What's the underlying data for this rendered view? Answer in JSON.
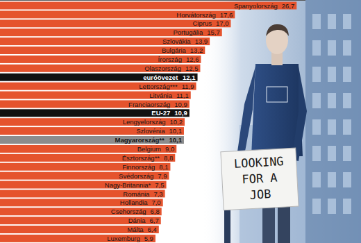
{
  "chart_data": {
    "type": "bar",
    "orientation": "horizontal",
    "categories": [
      "Spanyolország",
      "Horvátország",
      "Ciprus",
      "Portugália",
      "Szlovákia",
      "Bulgária",
      "Írország",
      "Olaszország",
      "euróövezet",
      "Lettország***",
      "Litvánia",
      "Franciaország",
      "EU-27",
      "Lengyelország",
      "Szlovénia",
      "Magyarország**",
      "Belgium",
      "Észtország**",
      "Finnország",
      "Svédország",
      "Nagy-Britannia*",
      "Románia",
      "Hollandia",
      "Csehország",
      "Dánia",
      "Málta",
      "Luxemburg"
    ],
    "values": [
      26.7,
      17.6,
      17.0,
      15.7,
      13.9,
      13.2,
      12.6,
      12.5,
      12.1,
      11.9,
      11.1,
      10.9,
      10.9,
      10.2,
      10.1,
      10.1,
      9.0,
      8.8,
      8.1,
      7.9,
      7.5,
      7.3,
      7.0,
      6.8,
      6.7,
      6.4,
      5.9
    ],
    "value_labels": [
      "26,7",
      "17,6",
      "17,0",
      "15,7",
      "13,9",
      "13,2",
      "12,6",
      "12,5",
      "12,1",
      "11,9",
      "11,1",
      "10,9",
      "10,9",
      "10,2",
      "10,1",
      "10,1",
      "9,0",
      "8,8",
      "8,1",
      "7,9",
      "7,5",
      "7,3",
      "7,0",
      "6,8",
      "6,7",
      "6,4",
      "5,9"
    ],
    "colors": [
      "#e5532d",
      "#e5532d",
      "#e5532d",
      "#e5532d",
      "#e5532d",
      "#e5532d",
      "#e5532d",
      "#e5532d",
      "#111111",
      "#e5532d",
      "#e5532d",
      "#e5532d",
      "#111111",
      "#e5532d",
      "#e5532d",
      "#8c8c8c",
      "#e5532d",
      "#e5532d",
      "#e5532d",
      "#e5532d",
      "#e5532d",
      "#e5532d",
      "#e5532d",
      "#e5532d",
      "#e5532d",
      "#e5532d",
      "#e5532d"
    ],
    "xlim": [
      -17,
      28
    ],
    "tick_labels": false,
    "grid": false,
    "data_labels": true,
    "annotations": [
      "LOOKING",
      "FOR A",
      "JOB"
    ]
  }
}
